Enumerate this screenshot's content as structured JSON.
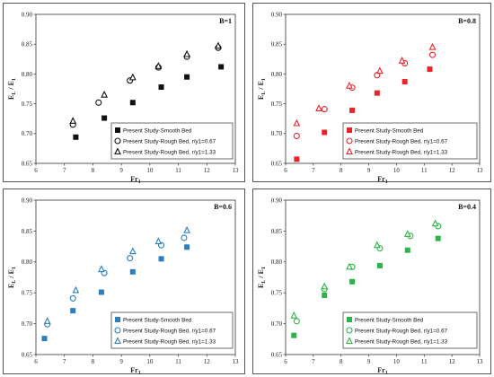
{
  "chart_data": [
    {
      "type": "scatter",
      "title": "B=1",
      "xlabel": "Fr1",
      "ylabel": "EL / E1",
      "xlim": [
        6,
        13
      ],
      "ylim": [
        0.65,
        0.9
      ],
      "xticks": [
        6,
        7,
        8,
        9,
        10,
        11,
        12,
        13
      ],
      "yticks": [
        0.65,
        0.7,
        0.75,
        0.8,
        0.85,
        0.9
      ],
      "color": "#111111",
      "series": [
        {
          "name": "Present Study-Smooth Bed",
          "marker": "square",
          "x": [
            7.4,
            8.4,
            9.4,
            10.4,
            11.3,
            12.5
          ],
          "y": [
            0.694,
            0.726,
            0.752,
            0.778,
            0.795,
            0.812
          ]
        },
        {
          "name": "Present Study-Rough Bed, r/y1=0.67",
          "marker": "circle",
          "x": [
            7.3,
            8.2,
            9.3,
            10.3,
            11.3,
            12.4
          ],
          "y": [
            0.715,
            0.752,
            0.789,
            0.811,
            0.829,
            0.844
          ]
        },
        {
          "name": "Present Study-Rough Bed, r/y1=1.33",
          "marker": "triangle",
          "x": [
            7.3,
            8.4,
            9.4,
            10.3,
            11.3,
            12.4
          ],
          "y": [
            0.721,
            0.765,
            0.794,
            0.813,
            0.833,
            0.847
          ]
        }
      ]
    },
    {
      "type": "scatter",
      "title": "B=0.8",
      "xlabel": "Fr1",
      "ylabel": "EL / E1",
      "xlim": [
        6,
        13
      ],
      "ylim": [
        0.65,
        0.9
      ],
      "xticks": [
        6,
        7,
        8,
        9,
        10,
        11,
        12,
        13
      ],
      "yticks": [
        0.65,
        0.7,
        0.75,
        0.8,
        0.85,
        0.9
      ],
      "color": "#e8242b",
      "series": [
        {
          "name": "Present Study-Smooth Bed",
          "marker": "square",
          "x": [
            6.4,
            7.4,
            8.4,
            9.3,
            10.3,
            11.2
          ],
          "y": [
            0.657,
            0.702,
            0.739,
            0.768,
            0.787,
            0.808
          ]
        },
        {
          "name": "Present Study-Rough Bed, r/y1=0.67",
          "marker": "circle",
          "x": [
            6.4,
            7.4,
            8.4,
            9.3,
            10.3,
            11.3
          ],
          "y": [
            0.696,
            0.741,
            0.777,
            0.798,
            0.818,
            0.832
          ]
        },
        {
          "name": "Present Study-Rough Bed, r/y1=1.33",
          "marker": "triangle",
          "x": [
            6.4,
            7.2,
            8.3,
            9.4,
            10.2,
            11.3
          ],
          "y": [
            0.717,
            0.742,
            0.78,
            0.805,
            0.822,
            0.845
          ]
        }
      ]
    },
    {
      "type": "scatter",
      "title": "B=0.6",
      "xlabel": "Fr1",
      "ylabel": "EL / E1",
      "xlim": [
        6,
        13
      ],
      "ylim": [
        0.65,
        0.9
      ],
      "xticks": [
        6,
        7,
        8,
        9,
        10,
        11,
        12,
        13
      ],
      "yticks": [
        0.65,
        0.7,
        0.75,
        0.8,
        0.85,
        0.9
      ],
      "color": "#2a7fc1",
      "series": [
        {
          "name": "Present Study-Smooth Bed",
          "marker": "square",
          "x": [
            6.3,
            7.3,
            8.3,
            9.4,
            10.4,
            11.3
          ],
          "y": [
            0.676,
            0.721,
            0.751,
            0.784,
            0.805,
            0.824
          ]
        },
        {
          "name": "Present Study-Rough Bed, r/y1=0.67",
          "marker": "circle",
          "x": [
            6.4,
            7.3,
            8.4,
            9.3,
            10.4,
            11.2
          ],
          "y": [
            0.699,
            0.741,
            0.782,
            0.806,
            0.827,
            0.839
          ]
        },
        {
          "name": "Present Study-Rough Bed, r/y1=1.33",
          "marker": "triangle",
          "x": [
            6.4,
            7.4,
            8.3,
            9.4,
            10.3,
            11.3
          ],
          "y": [
            0.704,
            0.754,
            0.788,
            0.817,
            0.833,
            0.851
          ]
        }
      ]
    },
    {
      "type": "scatter",
      "title": "B=0.4",
      "xlabel": "Fr1",
      "ylabel": "EL / E1",
      "xlim": [
        6,
        13
      ],
      "ylim": [
        0.65,
        0.9
      ],
      "xticks": [
        6,
        7,
        8,
        9,
        10,
        11,
        12,
        13
      ],
      "yticks": [
        0.65,
        0.7,
        0.75,
        0.8,
        0.85,
        0.9
      ],
      "color": "#2db34a",
      "series": [
        {
          "name": "Present Study-Smooth Bed",
          "marker": "square",
          "x": [
            6.3,
            7.4,
            8.4,
            9.4,
            10.4,
            11.5
          ],
          "y": [
            0.681,
            0.746,
            0.768,
            0.794,
            0.819,
            0.838
          ]
        },
        {
          "name": "Present Study-Rough Bed, r/y1=0.67",
          "marker": "circle",
          "x": [
            6.4,
            7.4,
            8.4,
            9.4,
            10.5,
            11.5
          ],
          "y": [
            0.704,
            0.756,
            0.792,
            0.822,
            0.842,
            0.858
          ]
        },
        {
          "name": "Present Study-Rough Bed, r/y1=1.33",
          "marker": "triangle",
          "x": [
            6.3,
            7.4,
            8.3,
            9.3,
            10.4,
            11.4
          ],
          "y": [
            0.713,
            0.76,
            0.792,
            0.827,
            0.845,
            0.862
          ]
        }
      ]
    }
  ]
}
